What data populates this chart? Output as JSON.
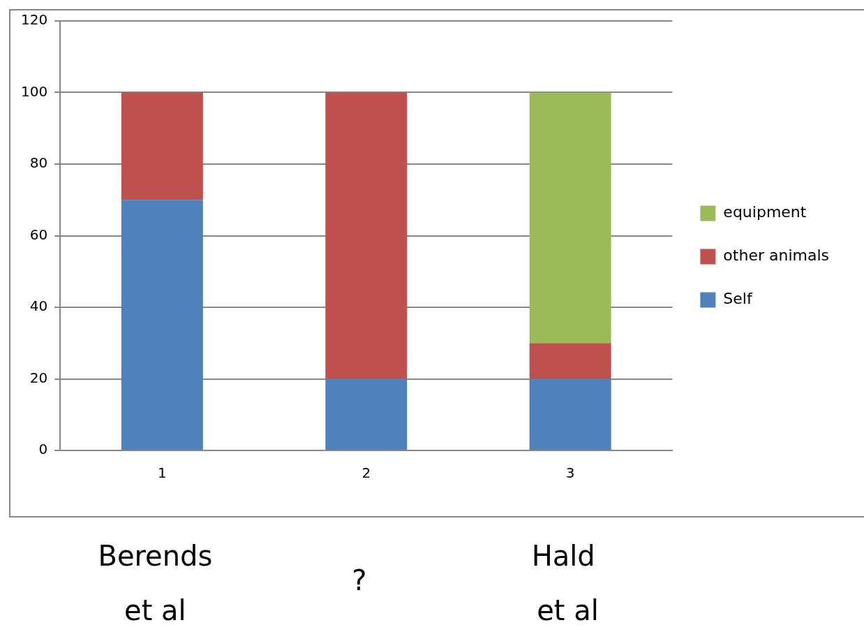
{
  "chart_data": {
    "type": "bar",
    "stacked": true,
    "categories": [
      "1",
      "2",
      "3"
    ],
    "series": [
      {
        "name": "Self",
        "color": "#4f81bd",
        "values": [
          70,
          20,
          20
        ]
      },
      {
        "name": "other animals",
        "color": "#c0504d",
        "values": [
          30,
          80,
          10
        ]
      },
      {
        "name": "equipment",
        "color": "#9bbb59",
        "values": [
          0,
          0,
          70
        ]
      }
    ],
    "ylim": [
      0,
      120
    ],
    "yticks": [
      0,
      20,
      40,
      60,
      80,
      100,
      120
    ],
    "grid": "y",
    "legend": "right",
    "annotations": [
      "Berends\net al",
      "?",
      "Hald\n et al"
    ]
  }
}
